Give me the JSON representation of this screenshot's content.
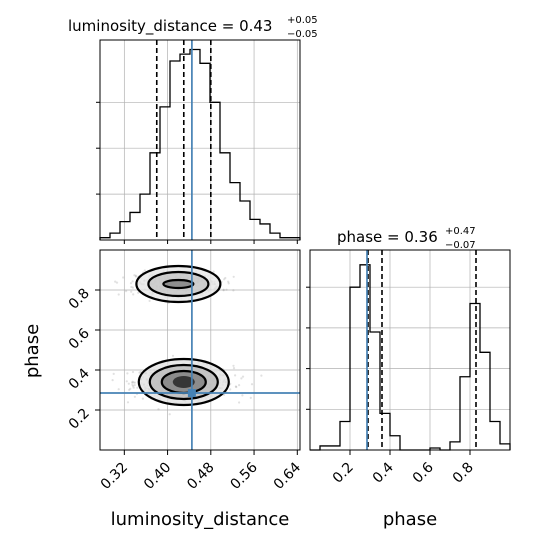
{
  "chart_data": {
    "type": "corner",
    "parameters": [
      "luminosity_distance",
      "phase"
    ],
    "titles": {
      "luminosity_distance": {
        "name": "luminosity_distance",
        "median": "0.43",
        "plus": "+0.05",
        "minus": "−0.05"
      },
      "phase": {
        "name": "phase",
        "median": "0.36",
        "plus": "+0.47",
        "minus": "−0.07"
      }
    },
    "truths": {
      "luminosity_distance": 0.445,
      "phase": 0.285
    },
    "quantiles": {
      "luminosity_distance": [
        0.38,
        0.43,
        0.48
      ],
      "phase": [
        0.29,
        0.36,
        0.83
      ]
    },
    "luminosity_distance_hist": {
      "range": [
        0.275,
        0.645
      ],
      "counts": [
        1,
        3,
        8,
        12,
        20,
        38,
        58,
        78,
        81,
        83,
        77,
        60,
        38,
        25,
        17,
        9,
        7,
        3,
        1,
        1
      ]
    },
    "phase_hist": {
      "range": [
        0.0,
        1.0
      ],
      "counts": [
        0,
        2,
        2,
        14,
        80,
        91,
        58,
        18,
        7,
        0,
        0,
        0,
        1,
        0,
        4,
        36,
        72,
        48,
        14,
        3
      ]
    },
    "scatter": {
      "xlim": [
        0.275,
        0.645
      ],
      "ylim": [
        0.0,
        1.0
      ],
      "clusters": [
        {
          "center": [
            0.43,
            0.34
          ],
          "spread": [
            0.035,
            0.04
          ]
        },
        {
          "center": [
            0.42,
            0.83
          ],
          "spread": [
            0.03,
            0.03
          ]
        }
      ]
    },
    "xlabel": "luminosity_distance",
    "xlabel2": "phase",
    "ylabel": "phase",
    "ld_ticks": [
      "0.32",
      "0.40",
      "0.48",
      "0.56",
      "0.64"
    ],
    "phase_ticks": [
      "0.2",
      "0.4",
      "0.6",
      "0.8"
    ],
    "ld_tick_values": [
      0.32,
      0.4,
      0.48,
      0.56,
      0.64
    ],
    "phase_tick_values": [
      0.2,
      0.4,
      0.6,
      0.8
    ],
    "grid": true,
    "colors": {
      "truth": "#4682b4",
      "hist": "#000000",
      "quantile": "#000000",
      "points": "#888888"
    }
  }
}
